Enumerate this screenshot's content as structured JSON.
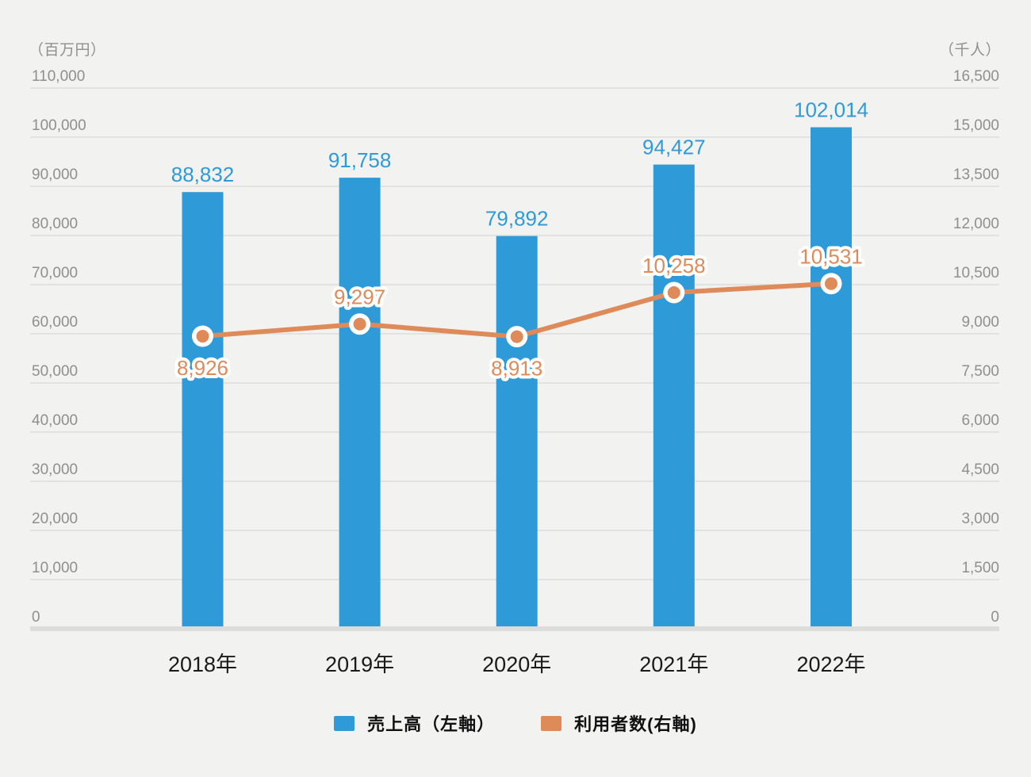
{
  "chart_data": {
    "type": "combo",
    "categories": [
      "2018年",
      "2019年",
      "2020年",
      "2021年",
      "2022年"
    ],
    "series": [
      {
        "name": "売上高（左軸）",
        "type": "bar",
        "axis": "left",
        "color": "#2E9BD8",
        "values": [
          88832,
          91758,
          79892,
          94427,
          102014
        ],
        "value_labels": [
          "88,832",
          "91,758",
          "79,892",
          "94,427",
          "102,014"
        ]
      },
      {
        "name": "利用者数(右軸)",
        "type": "line",
        "axis": "right",
        "color": "#DF8A59",
        "values": [
          8926,
          9297,
          8913,
          10258,
          10531
        ],
        "value_labels": [
          "8,926",
          "9,297",
          "8,913",
          "10,258",
          "10,531"
        ],
        "label_placement": [
          "below",
          "above",
          "below",
          "above",
          "above"
        ]
      }
    ],
    "left_axis": {
      "unit": "（百万円）",
      "min": 0,
      "max": 110000,
      "step": 10000,
      "tick_labels": [
        "0",
        "10,000",
        "20,000",
        "30,000",
        "40,000",
        "50,000",
        "60,000",
        "70,000",
        "80,000",
        "90,000",
        "100,000",
        "110,000"
      ]
    },
    "right_axis": {
      "unit": "（千人）",
      "min": 0,
      "max": 16500,
      "step": 1500,
      "tick_labels": [
        "0",
        "1,500",
        "3,000",
        "4,500",
        "6,000",
        "7,500",
        "9,000",
        "10,500",
        "12,000",
        "13,500",
        "15,000",
        "16,500"
      ]
    },
    "grid": true,
    "legend_position": "bottom center",
    "styles": {
      "background": "#F2F2F1",
      "grid_color": "#E2E2E1",
      "axis_line_color": "#DCDCDB",
      "tick_text_color": "#8F8F8E",
      "x_label_color": "#1A1A1A",
      "marker_ring_color": "#FFFFFF"
    }
  }
}
